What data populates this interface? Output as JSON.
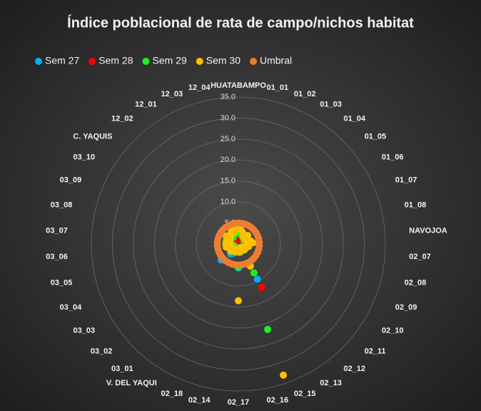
{
  "chart_data": {
    "type": "radar",
    "title": "Índice poblacional de rata de campo/nichos habitat",
    "categories": [
      "HUATABAMPO",
      "01_01",
      "01_02",
      "01_03",
      "01_04",
      "01_05",
      "01_06",
      "01_07",
      "01_08",
      "NAVOJOA",
      "02_07",
      "02_08",
      "02_09",
      "02_10",
      "02_11",
      "02_12",
      "02_13",
      "02_15",
      "02_16",
      "02_17",
      "02_14",
      "02_18",
      "V. DEL YAQUI",
      "03_01",
      "03_02",
      "03_03",
      "03_04",
      "03_05",
      "03_06",
      "03_07",
      "03_08",
      "03_09",
      "03_10",
      "C. YAQUIS",
      "12_02",
      "12_01",
      "12_03",
      "12_04"
    ],
    "series": [
      {
        "name": "Sem 27",
        "color": "#00b0f0",
        "values": [
          2,
          1.5,
          1,
          0.5,
          1,
          1.5,
          0.5,
          1,
          1.5,
          2,
          1,
          1.5,
          2,
          1,
          0.5,
          1,
          9.5,
          2,
          1.5,
          5.7,
          1,
          2,
          2.5,
          3,
          5.6,
          2,
          1,
          2.5,
          1.5,
          2,
          1.5,
          1,
          2,
          2.5,
          1.5,
          1,
          2,
          1.5
        ]
      },
      {
        "name": "Sem 28",
        "color": "#ff0000",
        "values": [
          1,
          0.5,
          1,
          0.5,
          1,
          0.5,
          1,
          0.5,
          1,
          1.5,
          1,
          2,
          1.5,
          1,
          0.5,
          1,
          11.7,
          1.5,
          2,
          2,
          1,
          0.5,
          1,
          2,
          1.5,
          1,
          0.5,
          1,
          1.5,
          1,
          0.5,
          1,
          0.5,
          1,
          1.5,
          1,
          0.5,
          1
        ]
      },
      {
        "name": "Sem 29",
        "color": "#22ee22",
        "values": [
          3,
          2.5,
          3,
          2,
          2.5,
          3,
          2,
          1.5,
          2,
          3,
          2,
          2.5,
          2,
          1.5,
          2,
          1,
          7.8,
          21.5,
          1.5,
          5.5,
          1,
          1.5,
          2,
          1,
          2,
          1.5,
          1,
          2,
          3,
          2.5,
          3,
          2.5,
          3,
          2.5,
          2,
          3,
          2.5,
          3
        ]
      },
      {
        "name": "Sem 30",
        "color": "#ffc000",
        "values": [
          4,
          3.5,
          3,
          2.5,
          2,
          3,
          2,
          2.5,
          3,
          3.5,
          2,
          2.5,
          2,
          1.5,
          2,
          1,
          6,
          33,
          2,
          13.5,
          1.5,
          2,
          1.5,
          2,
          2.5,
          1.5,
          2,
          3,
          2.5,
          3,
          2,
          3,
          3.5,
          2.5,
          3,
          3.5,
          3,
          4
        ]
      },
      {
        "name": "Umbral",
        "color": "#ed7d31",
        "values": [
          5,
          5,
          5,
          5,
          5,
          5,
          5,
          5,
          5,
          5,
          5,
          5,
          5,
          5,
          5,
          5,
          5,
          5,
          5,
          5,
          5,
          5,
          5,
          5,
          5,
          5,
          5,
          5,
          5,
          5,
          5,
          5,
          5,
          5,
          5,
          5,
          5,
          5
        ]
      }
    ],
    "ylim": [
      0,
      35
    ],
    "yticks": [
      {
        "value": 0,
        "label": "0.0"
      },
      {
        "value": 5,
        "label": "5.0"
      },
      {
        "value": 10,
        "label": "10.0"
      },
      {
        "value": 15,
        "label": "15.0"
      },
      {
        "value": 20,
        "label": "20.0"
      },
      {
        "value": 25,
        "label": "25.0"
      },
      {
        "value": 30,
        "label": "30.0"
      },
      {
        "value": 35,
        "label": "35.0"
      }
    ],
    "grid": true,
    "legend": "top"
  }
}
